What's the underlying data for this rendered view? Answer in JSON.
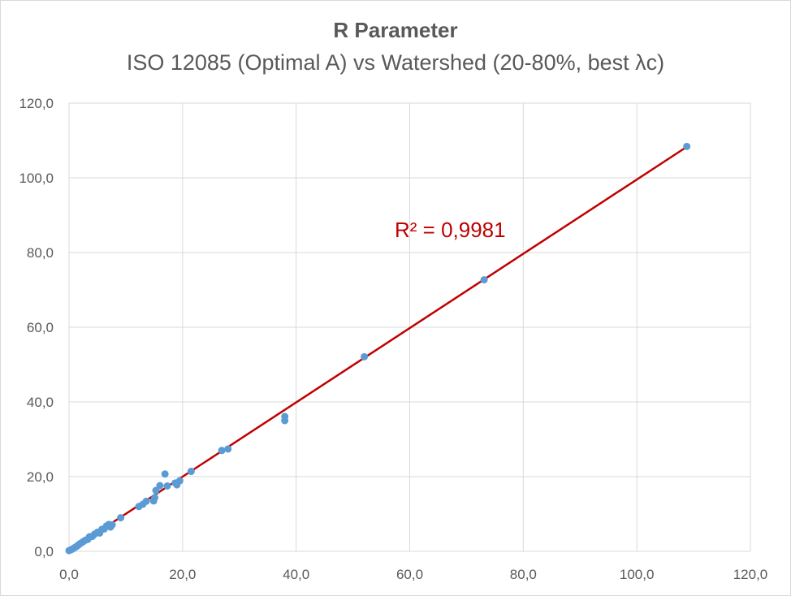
{
  "chart_data": {
    "type": "scatter",
    "title": "R Parameter",
    "subtitle": "ISO 12085 (Optimal A) vs Watershed (20-80%, best λc)",
    "xlabel": "",
    "ylabel": "",
    "xlim": [
      0,
      120
    ],
    "ylim": [
      0,
      120
    ],
    "x_ticks": [
      "0,0",
      "20,0",
      "40,0",
      "60,0",
      "80,0",
      "100,0",
      "120,0"
    ],
    "y_ticks": [
      "0,0",
      "20,0",
      "40,0",
      "60,0",
      "80,0",
      "100,0",
      "120,0"
    ],
    "grid": true,
    "legend": "none",
    "series": [
      {
        "color": "#5b9bd5",
        "points": [
          [
            0.0,
            0.2
          ],
          [
            0.3,
            0.4
          ],
          [
            0.6,
            0.6
          ],
          [
            0.9,
            0.9
          ],
          [
            1.2,
            1.2
          ],
          [
            1.5,
            1.5
          ],
          [
            1.8,
            1.9
          ],
          [
            2.1,
            2.2
          ],
          [
            2.5,
            2.6
          ],
          [
            2.9,
            3.0
          ],
          [
            3.3,
            3.2
          ],
          [
            3.6,
            3.9
          ],
          [
            4.1,
            4.0
          ],
          [
            4.5,
            4.6
          ],
          [
            5.0,
            5.1
          ],
          [
            5.4,
            4.9
          ],
          [
            5.8,
            5.9
          ],
          [
            6.2,
            6.0
          ],
          [
            6.6,
            6.8
          ],
          [
            7.0,
            7.2
          ],
          [
            7.3,
            6.5
          ],
          [
            7.6,
            7.1
          ],
          [
            9.1,
            9.0
          ],
          [
            12.3,
            12.0
          ],
          [
            13.0,
            12.6
          ],
          [
            13.6,
            13.4
          ],
          [
            14.9,
            13.5
          ],
          [
            15.1,
            14.4
          ],
          [
            15.3,
            16.3
          ],
          [
            16.0,
            17.6
          ],
          [
            16.9,
            20.7
          ],
          [
            17.3,
            17.5
          ],
          [
            18.7,
            18.3
          ],
          [
            19.0,
            17.8
          ],
          [
            19.5,
            18.9
          ],
          [
            21.5,
            21.4
          ],
          [
            26.9,
            27.0
          ],
          [
            28.0,
            27.4
          ],
          [
            38.0,
            35.0
          ],
          [
            38.0,
            36.1
          ],
          [
            52.0,
            52.1
          ],
          [
            73.1,
            72.7
          ],
          [
            108.8,
            108.4
          ]
        ]
      }
    ],
    "trendline": {
      "type": "linear",
      "color": "#c00000",
      "x": [
        0.0,
        108.6
      ],
      "y": [
        0.1,
        108.1
      ],
      "label": "R² = 0,9981"
    },
    "colors": {
      "grid": "#d9d9d9",
      "text": "#595959"
    }
  }
}
